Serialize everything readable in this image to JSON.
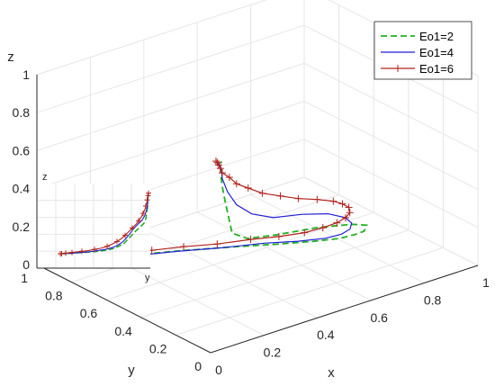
{
  "chart_data": {
    "type": "line",
    "projection": "3d",
    "xlabel": "x",
    "ylabel": "y",
    "zlabel": "z",
    "xlim": [
      0,
      1
    ],
    "ylim": [
      0,
      1
    ],
    "zlim": [
      0,
      1
    ],
    "x_ticks": [
      "0",
      "0.2",
      "0.4",
      "0.6",
      "0.8",
      "1"
    ],
    "y_ticks": [
      "0",
      "0.2",
      "0.4",
      "0.6",
      "0.8",
      "1"
    ],
    "z_ticks": [
      "0",
      "0.2",
      "0.4",
      "0.6",
      "0.8",
      "1"
    ],
    "grid": true,
    "legend_position": "top-right",
    "series": [
      {
        "name": "Eo1=2",
        "color": "#22b022",
        "style": "dashed",
        "x": [
          0.02,
          0.08,
          0.16,
          0.26,
          0.38,
          0.5,
          0.6,
          0.68,
          0.73,
          0.75,
          0.75,
          0.74,
          0.66,
          0.5,
          0.3,
          0.17,
          0.1,
          0.08,
          0.06,
          0.05,
          0.045,
          0.04,
          0.04
        ],
        "y": [
          0.98,
          0.95,
          0.9,
          0.83,
          0.74,
          0.64,
          0.55,
          0.46,
          0.38,
          0.32,
          0.27,
          0.24,
          0.2,
          0.15,
          0.09,
          0.05,
          0.03,
          0.02,
          0.01,
          0.01,
          0.01,
          0.005,
          0.0
        ],
        "z": [
          0.0,
          0.0,
          0.005,
          0.01,
          0.02,
          0.03,
          0.04,
          0.06,
          0.09,
          0.13,
          0.17,
          0.22,
          0.28,
          0.36,
          0.44,
          0.5,
          0.57,
          0.67,
          0.77,
          0.85,
          0.91,
          0.96,
          0.99
        ]
      },
      {
        "name": "Eo1=4",
        "color": "#1f1fd6",
        "style": "solid",
        "x": [
          0.02,
          0.08,
          0.15,
          0.25,
          0.36,
          0.47,
          0.57,
          0.64,
          0.69,
          0.71,
          0.71,
          0.69,
          0.64,
          0.55,
          0.42,
          0.28,
          0.18,
          0.11,
          0.07,
          0.05,
          0.04,
          0.03
        ],
        "y": [
          0.98,
          0.95,
          0.9,
          0.83,
          0.75,
          0.66,
          0.57,
          0.48,
          0.4,
          0.34,
          0.29,
          0.25,
          0.21,
          0.17,
          0.12,
          0.07,
          0.04,
          0.02,
          0.01,
          0.01,
          0.0,
          0.0
        ],
        "z": [
          0.0,
          0.0,
          0.005,
          0.01,
          0.02,
          0.03,
          0.05,
          0.07,
          0.1,
          0.14,
          0.19,
          0.25,
          0.32,
          0.4,
          0.48,
          0.55,
          0.63,
          0.72,
          0.81,
          0.89,
          0.95,
          0.99
        ]
      },
      {
        "name": "Eo1=6",
        "color": "#b0221c",
        "style": "solid",
        "marker": "+",
        "x": [
          0.02,
          0.03,
          0.05,
          0.08,
          0.12,
          0.17,
          0.23,
          0.3,
          0.38,
          0.46,
          0.54,
          0.6,
          0.65,
          0.68,
          0.7,
          0.7,
          0.69,
          0.66,
          0.61,
          0.55,
          0.47,
          0.38,
          0.3,
          0.22,
          0.16,
          0.11,
          0.08,
          0.05,
          0.04,
          0.03,
          0.025,
          0.02
        ],
        "y": [
          0.98,
          0.975,
          0.965,
          0.95,
          0.92,
          0.89,
          0.85,
          0.8,
          0.74,
          0.67,
          0.6,
          0.53,
          0.46,
          0.4,
          0.35,
          0.3,
          0.26,
          0.22,
          0.18,
          0.14,
          0.11,
          0.08,
          0.06,
          0.04,
          0.03,
          0.02,
          0.015,
          0.01,
          0.005,
          0.0,
          0.0,
          0.0
        ],
        "z": [
          0.0,
          0.0,
          0.0,
          0.005,
          0.01,
          0.015,
          0.02,
          0.03,
          0.04,
          0.05,
          0.07,
          0.09,
          0.12,
          0.16,
          0.2,
          0.25,
          0.3,
          0.36,
          0.42,
          0.48,
          0.54,
          0.6,
          0.66,
          0.72,
          0.78,
          0.83,
          0.88,
          0.92,
          0.95,
          0.975,
          0.99,
          1.0
        ]
      }
    ],
    "inset": {
      "xlabel": "y",
      "zlabel": "z",
      "grid": true,
      "series_shown": [
        "Eo1=2",
        "Eo1=4",
        "Eo1=6"
      ]
    }
  }
}
